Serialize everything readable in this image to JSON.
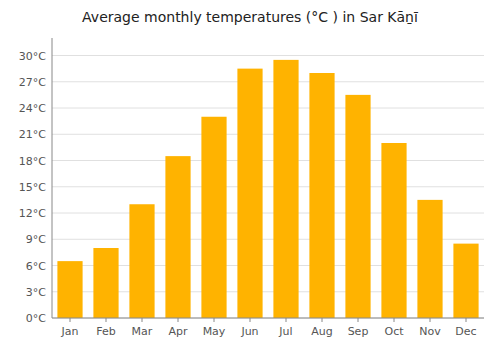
{
  "chart_data": {
    "type": "bar",
    "title": "Average monthly temperatures (°C ) in Sar Kāṉī",
    "categories": [
      "Jan",
      "Feb",
      "Mar",
      "Apr",
      "May",
      "Jun",
      "Jul",
      "Aug",
      "Sep",
      "Oct",
      "Nov",
      "Dec"
    ],
    "values": [
      6.5,
      8.0,
      13.0,
      18.5,
      23.0,
      28.5,
      29.5,
      28.0,
      25.5,
      20.0,
      13.5,
      8.5
    ],
    "color": "#FFB300",
    "ylim": [
      0,
      32
    ],
    "yticks": [
      {
        "value": 0,
        "label": "0°C"
      },
      {
        "value": 3,
        "label": "3°C"
      },
      {
        "value": 6,
        "label": "6°C"
      },
      {
        "value": 9,
        "label": "9°C"
      },
      {
        "value": 12,
        "label": "12°C"
      },
      {
        "value": 15,
        "label": "15°C"
      },
      {
        "value": 18,
        "label": "18°C"
      },
      {
        "value": 21,
        "label": "21°C"
      },
      {
        "value": 24,
        "label": "24°C"
      },
      {
        "value": 27,
        "label": "27°C"
      },
      {
        "value": 30,
        "label": "30°C"
      }
    ],
    "grid": true
  }
}
